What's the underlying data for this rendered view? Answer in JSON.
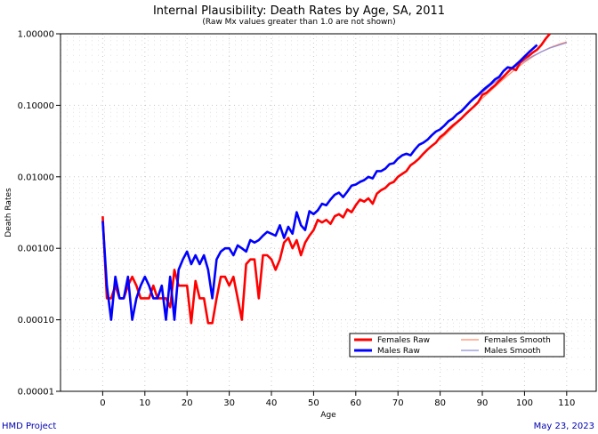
{
  "header": {
    "title": "Internal Plausibility: Death Rates by Age, SA, 2011",
    "subtitle": "(Raw Mx values greater than 1.0 are not shown)"
  },
  "footer": {
    "left": "HMD Project",
    "right": "May 23, 2023"
  },
  "chart_data": {
    "type": "line",
    "title": "Internal Plausibility: Death Rates by Age, SA, 2011",
    "subtitle": "(Raw Mx values greater than 1.0 are not shown)",
    "xlabel": "Age",
    "ylabel": "Death Rates",
    "xlim": [
      -10,
      117
    ],
    "ylim": [
      1e-05,
      1.0
    ],
    "yscale": "log",
    "x_ticks": [
      0,
      10,
      20,
      30,
      40,
      50,
      60,
      70,
      80,
      90,
      100,
      110
    ],
    "y_ticks": [
      {
        "value": 1e-05,
        "label": "0.00001"
      },
      {
        "value": 0.0001,
        "label": "0.00010"
      },
      {
        "value": 0.001,
        "label": "0.00100"
      },
      {
        "value": 0.01,
        "label": "0.01000"
      },
      {
        "value": 0.1,
        "label": "0.10000"
      },
      {
        "value": 1.0,
        "label": "1.00000"
      }
    ],
    "grid": true,
    "legend_position": "bottom-right",
    "series": [
      {
        "name": "Females Raw",
        "color": "#ff0000",
        "style": "thick",
        "x": [
          0,
          1,
          2,
          3,
          4,
          5,
          6,
          7,
          8,
          9,
          10,
          11,
          12,
          13,
          14,
          15,
          16,
          17,
          18,
          19,
          20,
          21,
          22,
          23,
          24,
          25,
          26,
          27,
          28,
          29,
          30,
          31,
          32,
          33,
          34,
          35,
          36,
          37,
          38,
          39,
          40,
          41,
          42,
          43,
          44,
          45,
          46,
          47,
          48,
          49,
          50,
          51,
          52,
          53,
          54,
          55,
          56,
          57,
          58,
          59,
          60,
          61,
          62,
          63,
          64,
          65,
          66,
          67,
          68,
          69,
          70,
          71,
          72,
          73,
          74,
          75,
          76,
          77,
          78,
          79,
          80,
          81,
          82,
          83,
          84,
          85,
          86,
          87,
          88,
          89,
          90,
          91,
          92,
          93,
          94,
          95,
          96,
          97,
          98,
          99,
          100,
          101,
          102,
          103,
          104,
          105,
          106
        ],
        "y": [
          0.0028,
          0.0002,
          0.0002,
          0.0003,
          0.0002,
          0.0002,
          0.0003,
          0.0004,
          0.0003,
          0.0002,
          0.0002,
          0.0002,
          0.0003,
          0.0002,
          0.0002,
          0.0002,
          0.00015,
          0.0005,
          0.0003,
          0.0003,
          0.0003,
          9e-05,
          0.00035,
          0.0002,
          0.0002,
          9e-05,
          9e-05,
          0.0002,
          0.0004,
          0.0004,
          0.0003,
          0.0004,
          0.0002,
          0.0001,
          0.0006,
          0.0007,
          0.0007,
          0.0002,
          0.0008,
          0.0008,
          0.0007,
          0.0005,
          0.0007,
          0.0012,
          0.0014,
          0.001,
          0.0013,
          0.0008,
          0.0012,
          0.0015,
          0.0018,
          0.0025,
          0.0023,
          0.0025,
          0.0022,
          0.0028,
          0.003,
          0.0027,
          0.0035,
          0.0032,
          0.004,
          0.0048,
          0.0045,
          0.005,
          0.0042,
          0.0058,
          0.0065,
          0.007,
          0.008,
          0.0085,
          0.01,
          0.011,
          0.012,
          0.0145,
          0.016,
          0.018,
          0.021,
          0.024,
          0.027,
          0.03,
          0.036,
          0.04,
          0.046,
          0.052,
          0.058,
          0.065,
          0.075,
          0.085,
          0.096,
          0.11,
          0.14,
          0.15,
          0.17,
          0.19,
          0.22,
          0.25,
          0.29,
          0.33,
          0.31,
          0.4,
          0.45,
          0.49,
          0.55,
          0.6,
          0.7,
          0.85,
          1.0
        ]
      },
      {
        "name": "Males Raw",
        "color": "#0000ff",
        "style": "thick",
        "x": [
          0,
          1,
          2,
          3,
          4,
          5,
          6,
          7,
          8,
          9,
          10,
          11,
          12,
          13,
          14,
          15,
          16,
          17,
          18,
          19,
          20,
          21,
          22,
          23,
          24,
          25,
          26,
          27,
          28,
          29,
          30,
          31,
          32,
          33,
          34,
          35,
          36,
          37,
          38,
          39,
          40,
          41,
          42,
          43,
          44,
          45,
          46,
          47,
          48,
          49,
          50,
          51,
          52,
          53,
          54,
          55,
          56,
          57,
          58,
          59,
          60,
          61,
          62,
          63,
          64,
          65,
          66,
          67,
          68,
          69,
          70,
          71,
          72,
          73,
          74,
          75,
          76,
          77,
          78,
          79,
          80,
          81,
          82,
          83,
          84,
          85,
          86,
          87,
          88,
          89,
          90,
          91,
          92,
          93,
          94,
          95,
          96,
          97,
          98,
          99,
          100,
          101,
          102,
          103
        ],
        "y": [
          0.0024,
          0.0003,
          0.0001,
          0.0004,
          0.0002,
          0.0002,
          0.0004,
          0.0001,
          0.0002,
          0.0003,
          0.0004,
          0.0003,
          0.0002,
          0.0002,
          0.0003,
          0.0001,
          0.0004,
          0.0001,
          0.0005,
          0.0007,
          0.0009,
          0.0006,
          0.0008,
          0.0006,
          0.0008,
          0.0005,
          0.0002,
          0.0007,
          0.0009,
          0.001,
          0.001,
          0.0008,
          0.0011,
          0.001,
          0.0009,
          0.0013,
          0.0012,
          0.0013,
          0.0015,
          0.0017,
          0.0016,
          0.0015,
          0.0021,
          0.0014,
          0.002,
          0.0016,
          0.0032,
          0.0021,
          0.0018,
          0.0033,
          0.003,
          0.0034,
          0.0042,
          0.004,
          0.0048,
          0.0056,
          0.006,
          0.0052,
          0.0062,
          0.0075,
          0.0078,
          0.0085,
          0.009,
          0.01,
          0.0095,
          0.012,
          0.012,
          0.013,
          0.015,
          0.0155,
          0.018,
          0.02,
          0.021,
          0.02,
          0.024,
          0.028,
          0.03,
          0.033,
          0.038,
          0.043,
          0.046,
          0.052,
          0.06,
          0.065,
          0.075,
          0.082,
          0.095,
          0.11,
          0.125,
          0.14,
          0.16,
          0.18,
          0.2,
          0.23,
          0.25,
          0.3,
          0.34,
          0.33,
          0.37,
          0.42,
          0.48,
          0.55,
          0.62,
          0.7
        ]
      },
      {
        "name": "Females Smooth",
        "color": "#ff8c6a",
        "style": "thin",
        "x": [
          80,
          82,
          84,
          86,
          88,
          90,
          92,
          94,
          96,
          98,
          100,
          102,
          104,
          106,
          108,
          110
        ],
        "y": [
          0.033,
          0.043,
          0.056,
          0.073,
          0.095,
          0.125,
          0.16,
          0.205,
          0.26,
          0.325,
          0.4,
          0.48,
          0.56,
          0.64,
          0.71,
          0.77
        ]
      },
      {
        "name": "Males Smooth",
        "color": "#8f8fd8",
        "style": "thin",
        "x": [
          80,
          82,
          84,
          86,
          88,
          90,
          92,
          94,
          96,
          98,
          100,
          102,
          104,
          106,
          108,
          110
        ],
        "y": [
          0.047,
          0.06,
          0.076,
          0.096,
          0.12,
          0.15,
          0.19,
          0.235,
          0.29,
          0.35,
          0.42,
          0.49,
          0.56,
          0.63,
          0.69,
          0.75
        ]
      }
    ]
  }
}
